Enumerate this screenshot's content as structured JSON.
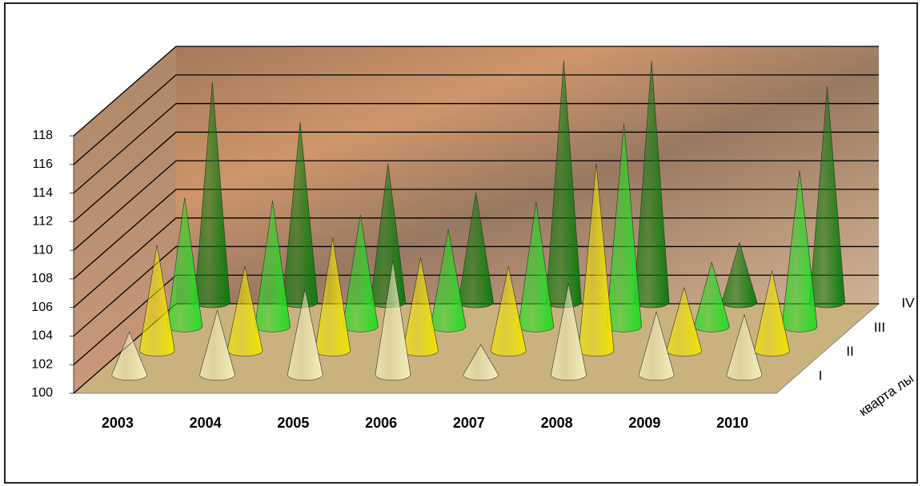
{
  "chart_data": {
    "type": "cone3d",
    "categories": [
      "2003",
      "2004",
      "2005",
      "2006",
      "2007",
      "2008",
      "2009",
      "2010"
    ],
    "depth_axis_label": "кварта лы",
    "series": [
      {
        "name": "I",
        "color": "#f4efbe",
        "values": [
          103,
          104.5,
          106,
          108,
          102.1,
          106.4,
          104.4,
          104.2
        ]
      },
      {
        "name": "II",
        "color": "#f2e400",
        "values": [
          107.4,
          105.9,
          107.9,
          106.5,
          105.9,
          113.1,
          104.4,
          105.6
        ]
      },
      {
        "name": "III",
        "color": "#22dd22",
        "values": [
          109,
          108.8,
          107.8,
          106.8,
          108.7,
          114.2,
          104.5,
          110.9
        ]
      },
      {
        "name": "IV",
        "color": "#0b7a0b",
        "values": [
          115.4,
          112.6,
          109.7,
          107.7,
          116.9,
          116.9,
          104.2,
          115.1
        ]
      }
    ],
    "ylim": [
      100,
      118
    ],
    "yticks": [
      100,
      102,
      104,
      106,
      108,
      110,
      112,
      114,
      116,
      118
    ],
    "grid": true
  }
}
